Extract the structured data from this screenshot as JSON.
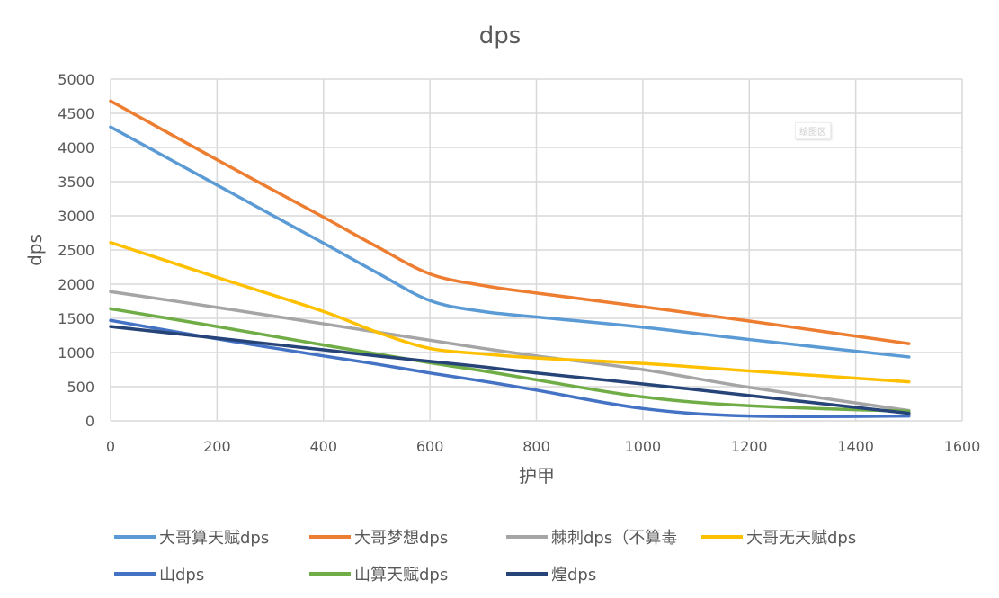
{
  "chart_data": {
    "type": "line",
    "title": "dps",
    "xlabel": "护甲",
    "ylabel": "dps",
    "xlim": [
      0,
      1600
    ],
    "ylim": [
      0,
      5000
    ],
    "xticks": [
      0,
      200,
      400,
      600,
      800,
      1000,
      1200,
      1400,
      1600
    ],
    "yticks": [
      0,
      500,
      1000,
      1500,
      2000,
      2500,
      3000,
      3500,
      4000,
      4500,
      5000
    ],
    "grid": true,
    "legend": "bottom",
    "plot_area_label": "绘图区",
    "x": [
      0,
      200,
      400,
      500,
      600,
      700,
      800,
      1000,
      1200,
      1500
    ],
    "series": [
      {
        "name": "大哥算天赋dps",
        "color": "#5B9BD5",
        "values": [
          4300,
          3450,
          2600,
          2170,
          1760,
          1600,
          1520,
          1370,
          1190,
          935
        ]
      },
      {
        "name": "大哥梦想dps",
        "color": "#ED7D31",
        "values": [
          4680,
          3820,
          2980,
          2550,
          2150,
          1980,
          1870,
          1670,
          1460,
          1130
        ]
      },
      {
        "name": "棘刺dps（不算毒",
        "color": "#A5A5A5",
        "values": [
          1890,
          1660,
          1420,
          1300,
          1180,
          1060,
          950,
          750,
          490,
          150
        ]
      },
      {
        "name": "大哥无天赋dps",
        "color": "#FFC000",
        "values": [
          2610,
          2100,
          1600,
          1300,
          1060,
          980,
          920,
          840,
          730,
          570
        ]
      },
      {
        "name": "山dps",
        "color": "#4472C4",
        "values": [
          1470,
          1200,
          950,
          830,
          700,
          580,
          450,
          180,
          70,
          70
        ]
      },
      {
        "name": "山算天赋dps",
        "color": "#70AD47",
        "values": [
          1640,
          1380,
          1110,
          980,
          850,
          730,
          600,
          350,
          220,
          140
        ]
      },
      {
        "name": "煌dps",
        "color": "#264478",
        "values": [
          1380,
          1210,
          1040,
          950,
          870,
          790,
          700,
          540,
          370,
          110
        ]
      }
    ]
  }
}
